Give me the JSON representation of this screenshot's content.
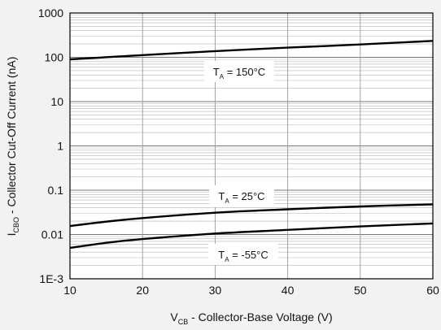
{
  "chart_data": {
    "type": "line",
    "xlabel": {
      "main": "V",
      "sub": "CB",
      "rest": " - Collector-Base Voltage (V)"
    },
    "ylabel": {
      "main": "I",
      "sub": "CBO",
      "rest": " - Collector Cut-Off Current (nA)"
    },
    "xlim": [
      10,
      60
    ],
    "ylim": [
      0.001,
      1000
    ],
    "yscale": "log",
    "grid": true,
    "x_ticks": [
      10,
      20,
      30,
      40,
      50,
      60
    ],
    "x_tick_labels": [
      "10",
      "20",
      "30",
      "40",
      "50",
      "60"
    ],
    "y_ticks": [
      0.001,
      0.01,
      0.1,
      1,
      10,
      100,
      1000
    ],
    "y_tick_labels": [
      "1E-3",
      "0.01",
      "0.1",
      "1",
      "10",
      "100",
      "1000"
    ],
    "series": [
      {
        "name": "T_A = 150°C",
        "label": {
          "main": "T",
          "sub": "A",
          "rest": " = 150°C"
        },
        "x": [
          10,
          20,
          30,
          40,
          50,
          60
        ],
        "y": [
          90,
          112,
          138,
          165,
          195,
          235
        ]
      },
      {
        "name": "T_A = 25°C",
        "label": {
          "main": "T",
          "sub": "A",
          "rest": " = 25°C"
        },
        "x": [
          10,
          15,
          20,
          30,
          40,
          50,
          60
        ],
        "y": [
          0.0155,
          0.0195,
          0.0235,
          0.031,
          0.037,
          0.043,
          0.048
        ]
      },
      {
        "name": "T_A = -55°C",
        "label": {
          "main": "T",
          "sub": "A",
          "rest": " = -55°C"
        },
        "x": [
          10,
          15,
          20,
          30,
          40,
          50,
          60
        ],
        "y": [
          0.005,
          0.0065,
          0.0079,
          0.0105,
          0.0127,
          0.0152,
          0.0178
        ]
      }
    ],
    "colors": {
      "line": "#000000",
      "grid": "#999999",
      "background": "#f2f2f2",
      "plot_bg": "#ffffff"
    }
  }
}
